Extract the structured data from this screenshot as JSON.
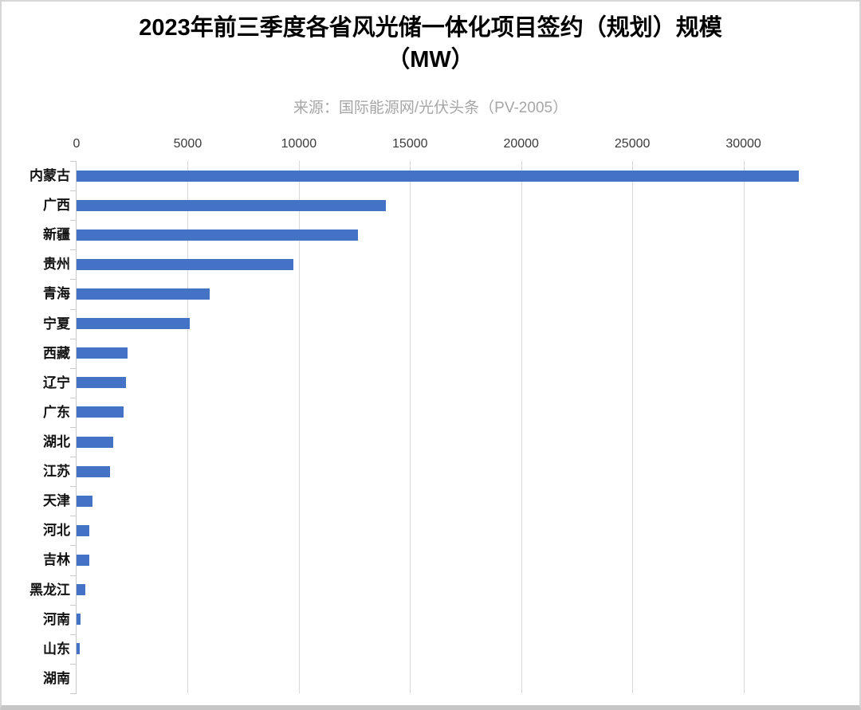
{
  "title": {
    "line1": "2023年前三季度各省风光储一体化项目签约（规划）规模",
    "line2": "（MW）"
  },
  "source_note": "来源：国际能源网/光伏头条（PV-2005）",
  "colors": {
    "bar": "#4472C4",
    "gridline": "#d9d9d9",
    "axis": "#c9c9c9",
    "title": "#000000",
    "subtitle": "#a6a6a6",
    "tick_label": "#3b3b3b"
  },
  "chart_data": {
    "type": "bar",
    "orientation": "horizontal",
    "title": "2023年前三季度各省风光储一体化项目签约（规划）规模（MW）",
    "subtitle": "来源：国际能源网/光伏头条（PV-2005）",
    "xlabel": "",
    "ylabel": "",
    "unit": "MW",
    "categories": [
      "内蒙古",
      "广西",
      "新疆",
      "贵州",
      "青海",
      "宁夏",
      "西藏",
      "辽宁",
      "广东",
      "湖北",
      "江苏",
      "天津",
      "河北",
      "吉林",
      "黑龙江",
      "河南",
      "山东",
      "湖南"
    ],
    "values": [
      32500,
      13900,
      12650,
      9750,
      6000,
      5100,
      2280,
      2220,
      2110,
      1660,
      1500,
      720,
      580,
      580,
      390,
      160,
      140,
      0
    ],
    "xlim": [
      0,
      35000
    ],
    "xticks": [
      0,
      5000,
      10000,
      15000,
      20000,
      25000,
      30000
    ],
    "grid": true,
    "legend": false,
    "bar_color": "#4472C4"
  }
}
